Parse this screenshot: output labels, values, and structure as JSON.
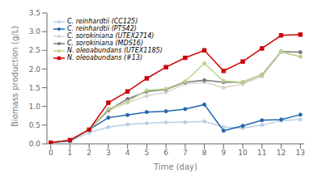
{
  "chart_data": {
    "type": "line",
    "xlabel": "Time (day)",
    "ylabel": "Biomass production (g/L)",
    "x": [
      0,
      1,
      2,
      3,
      4,
      5,
      6,
      7,
      8,
      9,
      10,
      11,
      12,
      13
    ],
    "series": [
      {
        "name": "C. reinhardtii (CC125)",
        "color": "#b8cfe8",
        "marker": "circle",
        "line_style": "solid",
        "values": [
          0.03,
          0.07,
          0.3,
          0.45,
          0.52,
          0.55,
          0.57,
          0.58,
          0.6,
          0.45,
          0.42,
          0.5,
          0.62,
          0.65
        ]
      },
      {
        "name": "C. reinhardtii (PTS42)",
        "color": "#2166ac",
        "marker": "circle",
        "line_style": "solid",
        "values": [
          0.03,
          0.08,
          0.38,
          0.7,
          0.77,
          0.85,
          0.87,
          0.93,
          1.05,
          0.35,
          0.48,
          0.63,
          0.65,
          0.78
        ]
      },
      {
        "name": "C. sorokiniana (UTEX2714)",
        "color": "#d9d5cd",
        "marker": "circle",
        "line_style": "solid",
        "values": [
          0.03,
          0.1,
          0.38,
          0.88,
          1.1,
          1.28,
          1.38,
          1.6,
          1.65,
          1.5,
          1.6,
          1.8,
          2.45,
          2.33
        ]
      },
      {
        "name": "C. sorokiniana (MDS16)",
        "color": "#777777",
        "marker": "circle",
        "line_style": "solid",
        "values": [
          0.03,
          0.1,
          0.38,
          0.9,
          1.2,
          1.4,
          1.45,
          1.65,
          1.7,
          1.65,
          1.65,
          1.85,
          2.47,
          2.45
        ]
      },
      {
        "name": "N. oleoabundans (UTEX1185)",
        "color": "#b8d48a",
        "marker": "circle",
        "line_style": "solid",
        "values": [
          0.03,
          0.1,
          0.38,
          0.93,
          1.13,
          1.43,
          1.47,
          1.67,
          2.15,
          1.68,
          1.65,
          1.85,
          2.47,
          2.33
        ]
      },
      {
        "name": "N. oleoabundans (#13)",
        "color": "#cc0000",
        "marker": "square",
        "line_style": "solid",
        "values": [
          0.03,
          0.1,
          0.38,
          1.1,
          1.4,
          1.75,
          2.05,
          2.3,
          2.5,
          1.95,
          2.2,
          2.55,
          2.9,
          2.92
        ]
      }
    ],
    "xlim": [
      -0.2,
      13.2
    ],
    "ylim": [
      0,
      3.5
    ],
    "xticks": [
      0,
      1,
      2,
      3,
      4,
      5,
      6,
      7,
      8,
      9,
      10,
      11,
      12,
      13
    ],
    "yticks": [
      {
        "value": 0,
        "label": "0.0"
      },
      0.5,
      {
        "value": 1.0,
        "label": "1.0"
      },
      1.5,
      {
        "value": 2.0,
        "label": "2.0"
      },
      2.5,
      {
        "value": 3.0,
        "label": "3.0"
      },
      3.5
    ],
    "grid": false,
    "legend": "upper left"
  }
}
